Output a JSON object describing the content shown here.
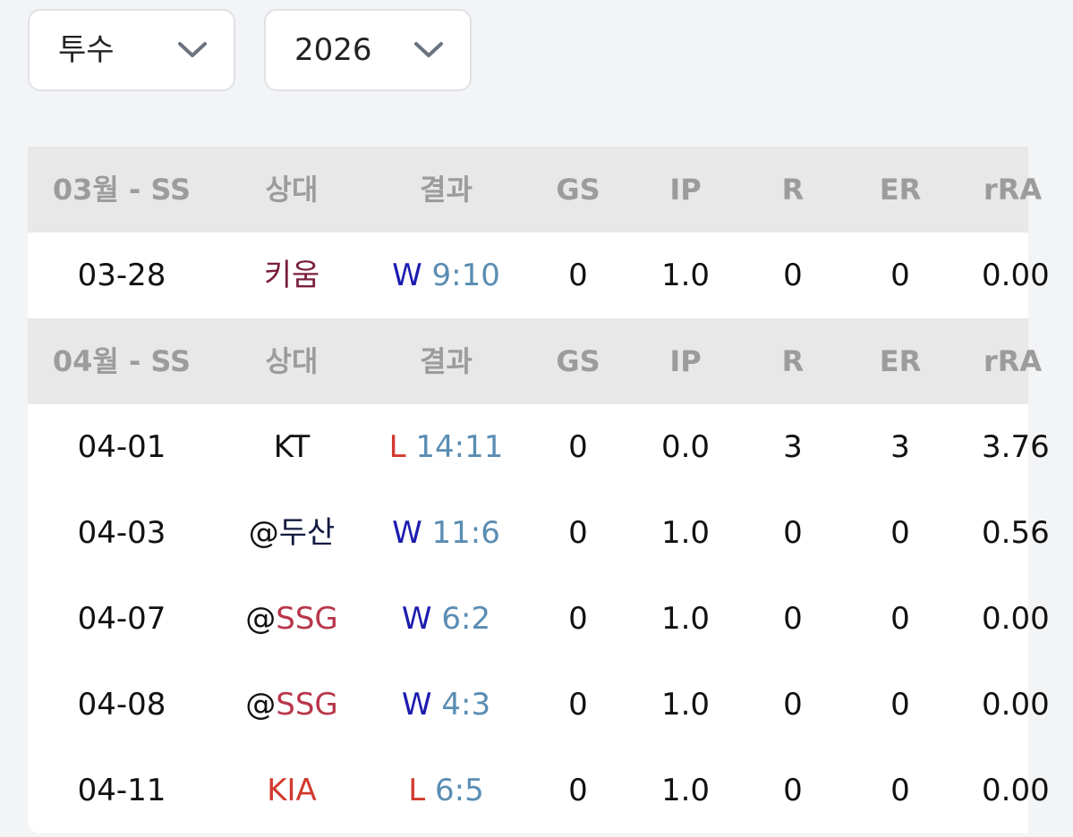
{
  "filters": {
    "position": "투수",
    "year": "2026"
  },
  "columns": [
    "상대",
    "결과",
    "GS",
    "IP",
    "R",
    "ER",
    "rRA"
  ],
  "sections": [
    {
      "label": "03월 - SS",
      "games": [
        {
          "date": "03-28",
          "opponent_prefix": "",
          "opponent": "키움",
          "opponent_color": "#7a1f3d",
          "result": "W",
          "result_color": "#1c1cb0",
          "score": "9:10",
          "gs": "0",
          "ip": "1.0",
          "r": "0",
          "er": "0",
          "rra": "0.00"
        }
      ]
    },
    {
      "label": "04월 - SS",
      "games": [
        {
          "date": "04-01",
          "opponent_prefix": "",
          "opponent": "KT",
          "opponent_color": "#111111",
          "result": "L",
          "result_color": "#d23a2f",
          "score": "14:11",
          "gs": "0",
          "ip": "0.0",
          "r": "3",
          "er": "3",
          "rra": "3.76"
        },
        {
          "date": "04-03",
          "opponent_prefix": "@",
          "opponent": "두산",
          "opponent_color": "#111a3f",
          "result": "W",
          "result_color": "#1c1cb0",
          "score": "11:6",
          "gs": "0",
          "ip": "1.0",
          "r": "0",
          "er": "0",
          "rra": "0.56"
        },
        {
          "date": "04-07",
          "opponent_prefix": "@",
          "opponent": "SSG",
          "opponent_color": "#b8364a",
          "result": "W",
          "result_color": "#1c1cb0",
          "score": "6:2",
          "gs": "0",
          "ip": "1.0",
          "r": "0",
          "er": "0",
          "rra": "0.00"
        },
        {
          "date": "04-08",
          "opponent_prefix": "@",
          "opponent": "SSG",
          "opponent_color": "#b8364a",
          "result": "W",
          "result_color": "#1c1cb0",
          "score": "4:3",
          "gs": "0",
          "ip": "1.0",
          "r": "0",
          "er": "0",
          "rra": "0.00"
        },
        {
          "date": "04-11",
          "opponent_prefix": "",
          "opponent": "KIA",
          "opponent_color": "#d23a2f",
          "result": "L",
          "result_color": "#d23a2f",
          "score": "6:5",
          "gs": "0",
          "ip": "1.0",
          "r": "0",
          "er": "0",
          "rra": "0.00"
        }
      ]
    }
  ],
  "colors": {
    "score": "#5a8db3",
    "prefix": "#111111",
    "header_bg": "#e8e8e8",
    "header_text": "#9c9c9c"
  },
  "icons": {
    "dropdown": "chevron-down-icon"
  }
}
